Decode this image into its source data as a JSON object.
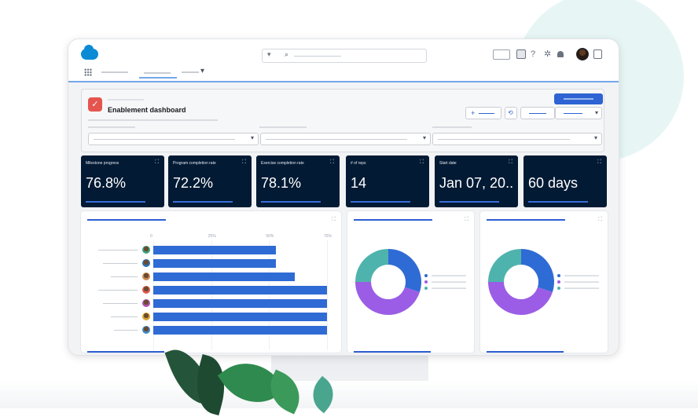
{
  "header": {
    "title": "Enablement dashboard"
  },
  "icons": {
    "search_dropdown": "▾",
    "search": "⌕",
    "select_caret": "▾",
    "expand": "⛶",
    "question": "?",
    "gear": "✲",
    "bell": "🔔",
    "add": "+",
    "link": "⟲"
  },
  "kpis": [
    {
      "label": "Milestone progress",
      "value": "76.8%"
    },
    {
      "label": "Program completion rate",
      "value": "72.2%"
    },
    {
      "label": "Exercise completion rate",
      "value": "78.1%"
    },
    {
      "label": "# of reps",
      "value": "14"
    },
    {
      "label": "Start date",
      "value": "Jan 07, 20.."
    },
    {
      "label": "",
      "value": "60 days"
    }
  ],
  "chart_data": [
    {
      "type": "bar",
      "orientation": "horizontal",
      "x_ticks": [
        "0",
        "25%",
        "50%",
        "75%"
      ],
      "xlim": [
        0,
        75
      ],
      "values": [
        53,
        53,
        61,
        75,
        75,
        75,
        75
      ],
      "title": "",
      "xlabel": "",
      "ylabel": ""
    },
    {
      "type": "pie",
      "donut": true,
      "values": [
        30,
        45,
        25
      ],
      "colors": [
        "#2f6bd4",
        "#9b5de5",
        "#4fb3ad"
      ]
    },
    {
      "type": "pie",
      "donut": true,
      "values": [
        30,
        45,
        25
      ],
      "colors": [
        "#2f6bd4",
        "#9b5de5",
        "#4fb3ad"
      ]
    }
  ],
  "colors": {
    "brand_blue": "#0b8bd5",
    "accent_blue": "#2f6bd4",
    "kpi_bg": "#031a34",
    "purple": "#9b5de5",
    "teal": "#4fb3ad",
    "icon_red": "#e5554f"
  }
}
